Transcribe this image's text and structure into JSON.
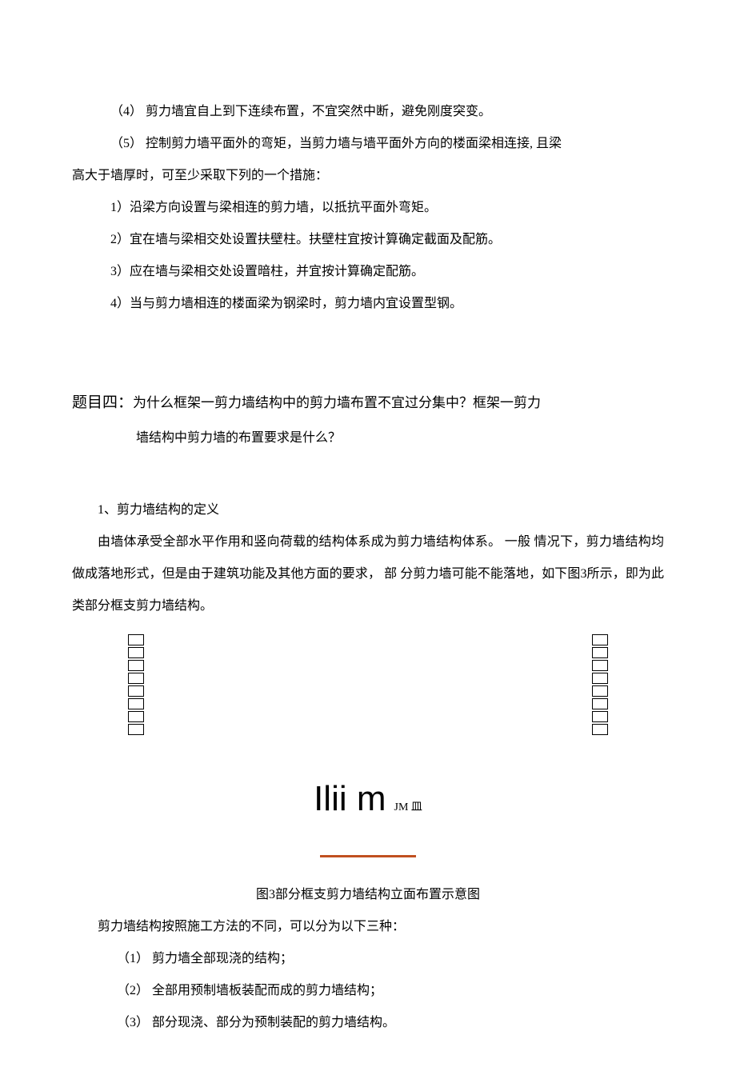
{
  "top": {
    "p4": "（4）  剪力墙宜自上到下连续布置，不宜突然中断，避免刚度突变。",
    "p5a": "（5）  控制剪力墙平面外的弯矩，当剪力墙与墙平面外方向的楼面梁相连接,  且梁",
    "p5b": "高大于墙厚时，可至少采取下列的一个措施：",
    "s1": "1）沿梁方向设置与梁相连的剪力墙，以抵抗平面外弯矩。",
    "s2": "2）宜在墙与梁相交处设置扶壁柱。扶壁柱宜按计算确定截面及配筋。",
    "s3": "3）应在墙与梁相交处设置暗柱，并宜按计算确定配筋。",
    "s4": "4）当与剪力墙相连的楼面梁为钢梁时，剪力墙内宜设置型钢。"
  },
  "question": {
    "label": "题目四：",
    "line1": "为什么框架一剪力墙结构中的剪力墙布置不宜过分集中？框架一剪力",
    "line2": "墙结构中剪力墙的布置要求是什么？"
  },
  "section": {
    "num": "1、剪力墙结构的定义",
    "body1": "由墙体承受全部水平作用和竖向荷载的结构体系成为剪力墙结构体系。  一般   情况下，剪力墙结构均做成落地形式，但是由于建筑功能及其他方面的要求，  部  分剪力墙可能不能落地，如下图3所示，即为此类部分框支剪力墙结构。"
  },
  "figure": {
    "boxes_per_column": 8,
    "center_text_big": "Ilii m",
    "center_text_small": "JM  皿",
    "underline_color": "#c05020",
    "caption": "图3部分框支剪力墙结构立面布置示意图"
  },
  "list": {
    "intro": "剪力墙结构按照施工方法的不同，可以分为以下三种：",
    "i1": "（1）  剪力墙全部现浇的结构；",
    "i2": "（2）  全部用预制墙板装配而成的剪力墙结构；",
    "i3": "（3）  部分现浇、部分为预制装配的剪力墙结构。"
  }
}
